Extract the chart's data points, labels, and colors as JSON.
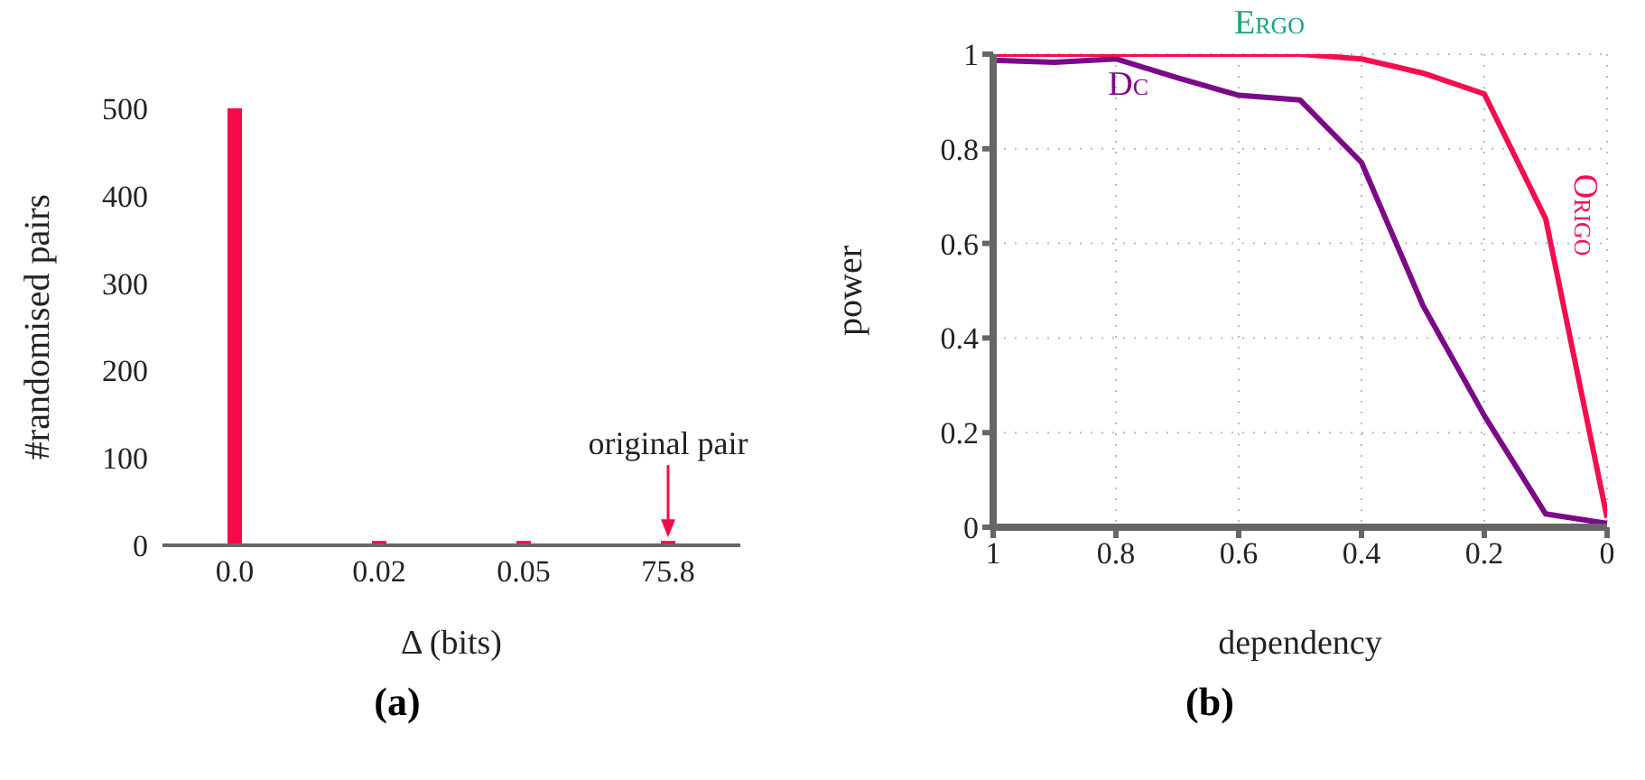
{
  "chart_data": [
    {
      "type": "bar",
      "title": "(a)",
      "xlabel": "Δ (bits)",
      "ylabel": "#randomised pairs",
      "categories": [
        "0.0",
        "0.02",
        "0.05",
        "75.8"
      ],
      "values": [
        500,
        5,
        5,
        5
      ],
      "color": "#f50a4a",
      "ylim": [
        0,
        500
      ],
      "yticks": [
        0,
        100,
        200,
        300,
        400,
        500
      ],
      "grid": false,
      "annotations": [
        {
          "text": "original pair",
          "x": "75.8",
          "y": 5
        }
      ]
    },
    {
      "type": "line",
      "title": "(b)",
      "xlabel": "dependency",
      "ylabel": "power",
      "x": [
        1,
        0.9,
        0.8,
        0.7,
        0.6,
        0.5,
        0.4,
        0.3,
        0.2,
        0.1,
        0
      ],
      "series": [
        {
          "name": "Ergo",
          "color": "#1aa37a",
          "values": [
            null,
            null,
            null,
            null,
            null,
            null,
            null,
            null,
            null,
            null,
            null
          ]
        },
        {
          "name": "Dc",
          "color": "#7b0a87",
          "values": [
            0.987,
            0.983,
            0.99,
            0.95,
            0.913,
            0.903,
            0.771,
            0.469,
            0.236,
            0.028,
            0.008
          ]
        },
        {
          "name": "Origo",
          "color": "#f40d4f",
          "values": [
            1,
            1,
            1,
            1,
            1,
            1,
            0.99,
            0.96,
            0.916,
            0.652,
            0.02
          ]
        }
      ],
      "xlim": [
        1,
        0
      ],
      "xticks": [
        1,
        0.8,
        0.6,
        0.4,
        0.2,
        0
      ],
      "ylim": [
        0,
        1
      ],
      "yticks": [
        0,
        0.2,
        0.4,
        0.6,
        0.8,
        1
      ],
      "grid": true,
      "marker": "none",
      "line_style": "solid"
    }
  ]
}
